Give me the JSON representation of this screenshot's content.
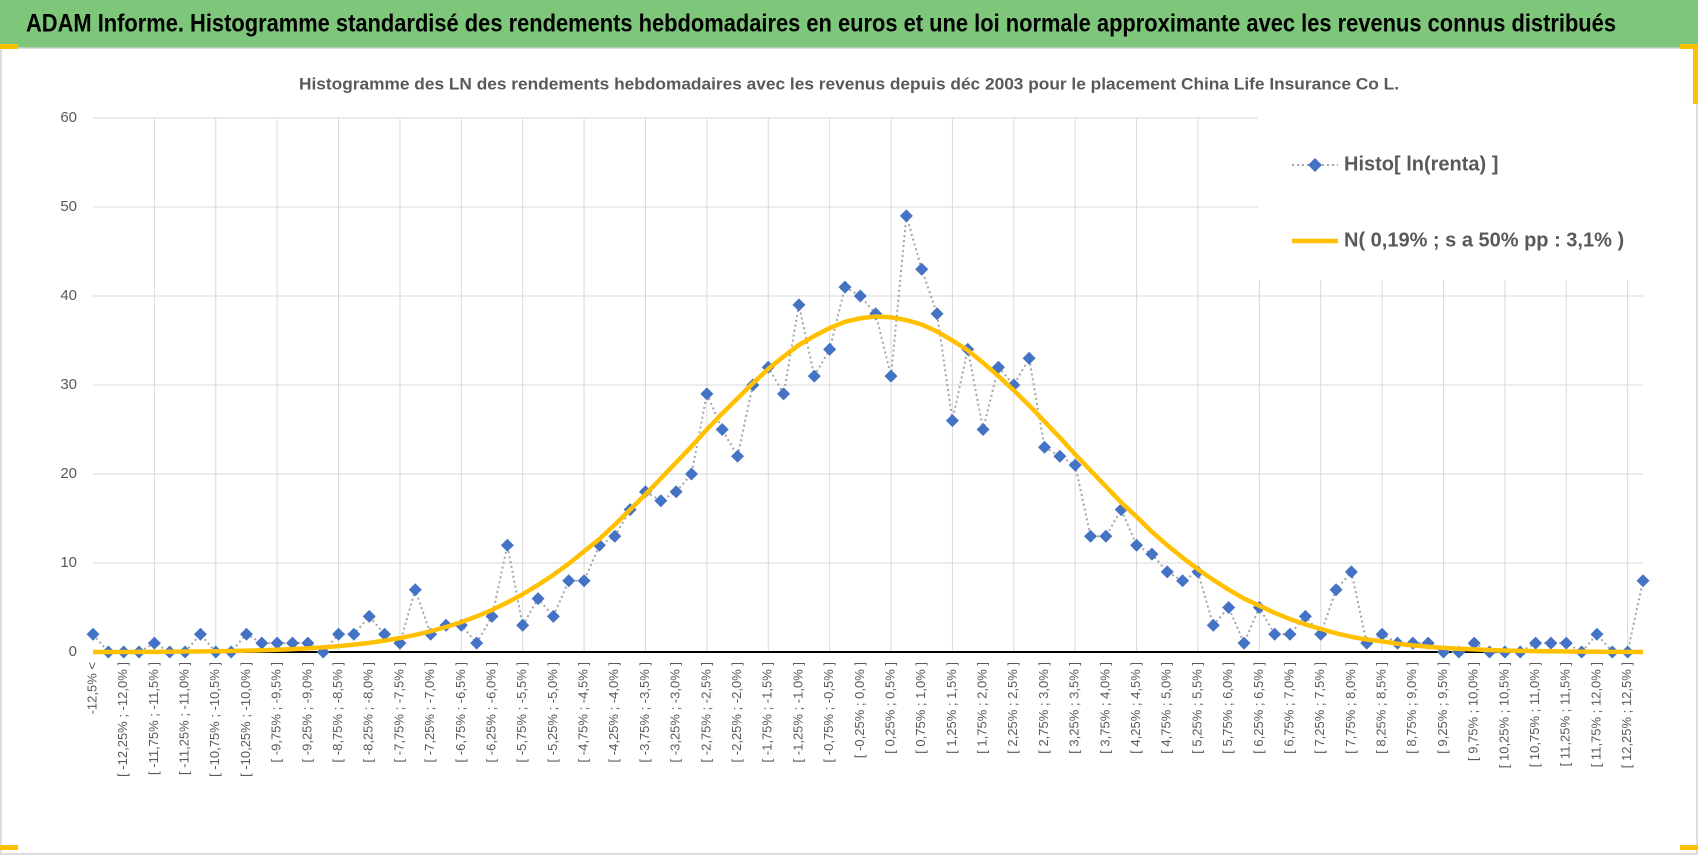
{
  "header": {
    "title": "ADAM Informe. Histogramme standardisé des rendements hebdomadaires en euros et une loi normale approximante avec les revenus connus distribués"
  },
  "chart_data": {
    "type": "line",
    "title": "Histogramme des LN des rendements hebdomadaires avec les revenus depuis déc 2003 pour le placement China Life Insurance Co L.",
    "categories": [
      "-12,5% <",
      null,
      "[ -12,25% ; -12,0% ]",
      null,
      "[ -11,75% ; -11,5% ]",
      null,
      "[ -11,25% ; -11,0% ]",
      null,
      "[ -10,75% ; -10,5% ]",
      null,
      "[ -10,25% ; -10,0% ]",
      null,
      "[ -9,75% ; -9,5% ]",
      null,
      "[ -9,25% ; -9,0% ]",
      null,
      "[ -8,75% ; -8,5% ]",
      null,
      "[ -8,25% ; -8,0% ]",
      null,
      "[ -7,75% ; -7,5% ]",
      null,
      "[ -7,25% ; -7,0% ]",
      null,
      "[ -6,75% ; -6,5% ]",
      null,
      "[ -6,25% ; -6,0% ]",
      null,
      "[ -5,75% ; -5,5% ]",
      null,
      "[ -5,25% ; -5,0% ]",
      null,
      "[ -4,75% ; -4,5% ]",
      null,
      "[ -4,25% ; -4,0% ]",
      null,
      "[ -3,75% ; -3,5% ]",
      null,
      "[ -3,25% ; -3,0% ]",
      null,
      "[ -2,75% ; -2,5% ]",
      null,
      "[ -2,25% ; -2,0% ]",
      null,
      "[ -1,75% ; -1,5% ]",
      null,
      "[ -1,25% ; -1,0% ]",
      null,
      "[ -0,75% ; -0,5% ]",
      null,
      "[ -0,25% ; 0,0% ]",
      null,
      "[ 0,25% ; 0,5% ]",
      null,
      "[ 0,75% ; 1,0% ]",
      null,
      "[ 1,25% ; 1,5% ]",
      null,
      "[ 1,75% ; 2,0% ]",
      null,
      "[ 2,25% ; 2,5% ]",
      null,
      "[ 2,75% ; 3,0% ]",
      null,
      "[ 3,25% ; 3,5% ]",
      null,
      "[ 3,75% ; 4,0% ]",
      null,
      "[ 4,25% ; 4,5% ]",
      null,
      "[ 4,75% ; 5,0% ]",
      null,
      "[ 5,25% ; 5,5% ]",
      null,
      "[ 5,75% ; 6,0% ]",
      null,
      "[ 6,25% ; 6,5% ]",
      null,
      "[ 6,75% ; 7,0% ]",
      null,
      "[ 7,25% ; 7,5% ]",
      null,
      "[ 7,75% ; 8,0% ]",
      null,
      "[ 8,25% ; 8,5% ]",
      null,
      "[ 8,75% ; 9,0% ]",
      null,
      "[ 9,25% ; 9,5% ]",
      null,
      "[ 9,75% ; 10,0% ]",
      null,
      "[ 10,25% ; 10,5% ]",
      null,
      "[ 10,75% ; 11,0% ]",
      null,
      "[ 11,25% ; 11,5% ]",
      null,
      "[ 11,75% ; 12,0% ]",
      null,
      "[ 12,25% ; 12,5% ]",
      null
    ],
    "series": [
      {
        "name": "Histo[ ln(renta) ]",
        "color": "#4472c4",
        "line_color": "#a5a5a5",
        "line_style": "dotted",
        "marker": "diamond",
        "values": [
          2,
          0,
          0,
          0,
          1,
          0,
          0,
          2,
          0,
          0,
          2,
          1,
          1,
          1,
          1,
          0,
          2,
          2,
          4,
          2,
          1,
          7,
          2,
          3,
          3,
          1,
          4,
          12,
          3,
          6,
          4,
          8,
          8,
          12,
          13,
          16,
          18,
          17,
          18,
          20,
          29,
          25,
          22,
          30,
          32,
          29,
          39,
          31,
          34,
          41,
          40,
          38,
          31,
          49,
          43,
          38,
          26,
          34,
          25,
          32,
          30,
          33,
          23,
          22,
          21,
          13,
          13,
          16,
          12,
          11,
          9,
          8,
          9,
          3,
          5,
          1,
          5,
          2,
          2,
          4,
          2,
          7,
          9,
          1,
          2,
          1,
          1,
          1,
          0,
          0,
          1,
          0,
          0,
          0,
          1,
          1,
          1,
          0,
          2,
          0,
          0,
          8
        ]
      },
      {
        "name": "N( 0,19% ; s a 50% pp : 3,1% )",
        "color": "#ffc000",
        "line_style": "solid",
        "marker": "none",
        "values": [
          0,
          0,
          0,
          0.01,
          0.02,
          0.03,
          0.05,
          0.06,
          0.09,
          0.11,
          0.15,
          0.19,
          0.25,
          0.32,
          0.41,
          0.52,
          0.66,
          0.83,
          1.03,
          1.28,
          1.57,
          1.92,
          2.33,
          2.81,
          3.36,
          4,
          4.73,
          5.56,
          6.49,
          7.53,
          8.67,
          9.92,
          11.3,
          12.7,
          14.3,
          16,
          17.7,
          19.5,
          21.3,
          23.1,
          25,
          26.8,
          28.5,
          30.2,
          31.8,
          33.2,
          34.5,
          35.5,
          36.4,
          37.1,
          37.5,
          37.7,
          37.6,
          37.3,
          36.8,
          36,
          35,
          33.9,
          32.5,
          31,
          29.4,
          27.7,
          25.9,
          24.1,
          22.2,
          20.4,
          18.6,
          16.8,
          15.2,
          13.5,
          12,
          10.6,
          9.3,
          8.1,
          7,
          6,
          5.2,
          4.4,
          3.7,
          3.1,
          2.6,
          2.1,
          1.7,
          1.4,
          1.2,
          0.93,
          0.74,
          0.59,
          0.47,
          0.37,
          0.29,
          0.22,
          0.17,
          0.13,
          0.1,
          0.08,
          0.06,
          0.04,
          0.03,
          0.02,
          0.01,
          0
        ]
      }
    ],
    "ylim": [
      0,
      60
    ],
    "yticks": [
      0,
      10,
      20,
      30,
      40,
      50,
      60
    ],
    "grid": true,
    "legend": "top-right"
  }
}
